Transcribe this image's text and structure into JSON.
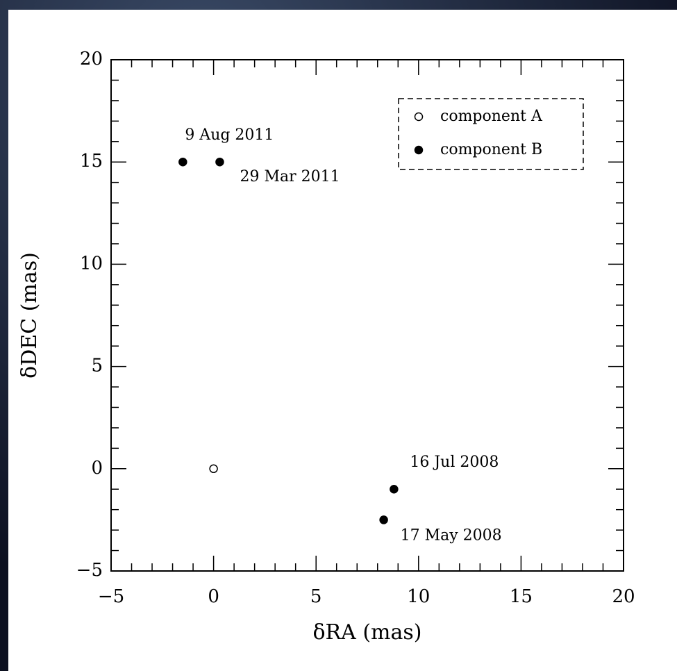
{
  "chart_data": {
    "type": "scatter",
    "xlabel": "δRA (mas)",
    "ylabel": "δDEC (mas)",
    "xlim": [
      -5,
      20
    ],
    "ylim": [
      -5,
      20
    ],
    "xticks": [
      {
        "value": -5,
        "label": "−5"
      },
      0,
      5,
      10,
      15,
      20
    ],
    "yticks": [
      {
        "value": -5,
        "label": "−5"
      },
      0,
      5,
      10,
      15,
      20
    ],
    "xminorticks": [
      -4,
      -3,
      -2,
      -1,
      1,
      2,
      3,
      4,
      6,
      7,
      8,
      9,
      11,
      12,
      13,
      14,
      16,
      17,
      18,
      19
    ],
    "yminorticks": [
      -4,
      -3,
      -2,
      -1,
      1,
      2,
      3,
      4,
      6,
      7,
      8,
      9,
      11,
      12,
      13,
      14,
      16,
      17,
      18,
      19
    ],
    "legend": "upper right",
    "series": [
      {
        "name": "component A",
        "marker": "open",
        "color": "#000000",
        "x": [
          0
        ],
        "values": [
          0
        ]
      },
      {
        "name": "component B",
        "marker": "filled",
        "color": "#000000",
        "x": [
          -1.5,
          0.3,
          8.8,
          8.3
        ],
        "values": [
          15,
          15,
          -1,
          -2.5
        ],
        "point_labels": [
          "9 Aug 2011",
          "29 Mar 2011",
          "16 Jul 2008",
          "17 May 2008"
        ]
      }
    ]
  }
}
